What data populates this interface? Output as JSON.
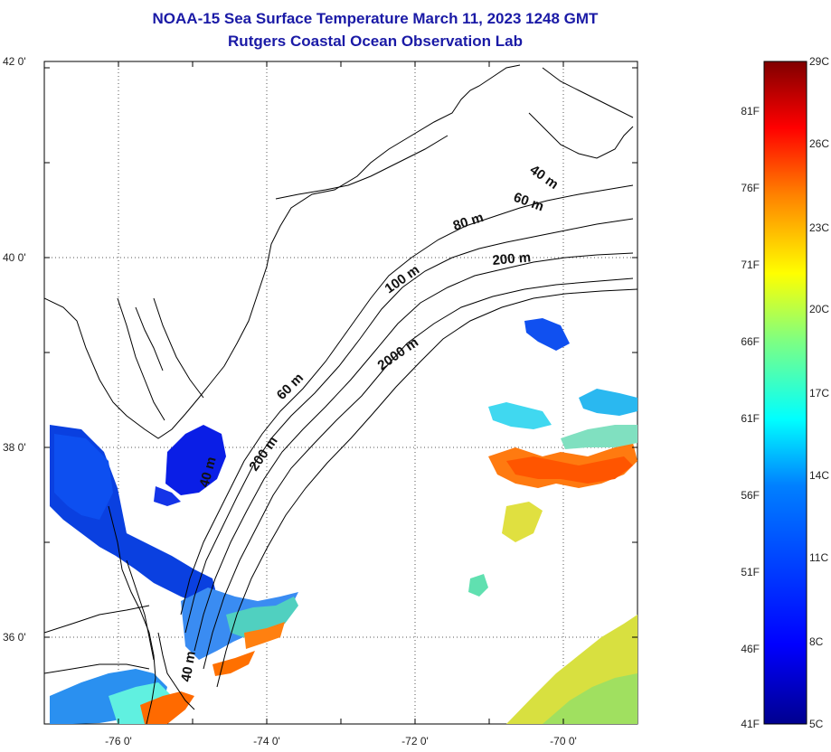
{
  "header": {
    "title": "NOAA-15 Sea Surface Temperature March 11, 2023 1248 GMT",
    "subtitle": "Rutgers Coastal Ocean Observation Lab"
  },
  "map": {
    "lat_ticks": [
      "42 0'",
      "40 0'",
      "38 0'",
      "36 0'"
    ],
    "lon_ticks": [
      "-76 0'",
      "-74 0'",
      "-72 0'",
      "-70 0'"
    ],
    "lat_range": [
      35,
      42
    ],
    "lon_range": [
      -77,
      -69
    ],
    "isobath_labels": [
      "40 m",
      "60 m",
      "80 m",
      "200 m",
      "100 m",
      "2000 m",
      "60 m",
      "40 m",
      "200 m",
      "40 m"
    ]
  },
  "colorbar": {
    "celsius_labels": [
      "29C",
      "26C",
      "23C",
      "20C",
      "17C",
      "14C",
      "11C",
      "8C",
      "5C"
    ],
    "fahrenheit_labels": [
      "81F",
      "76F",
      "71F",
      "66F",
      "61F",
      "56F",
      "51F",
      "46F",
      "41F"
    ],
    "colors": [
      "#00008f",
      "#0000ff",
      "#0080ff",
      "#00ffff",
      "#80ff80",
      "#ffff00",
      "#ff8000",
      "#ff0000",
      "#800000"
    ]
  }
}
